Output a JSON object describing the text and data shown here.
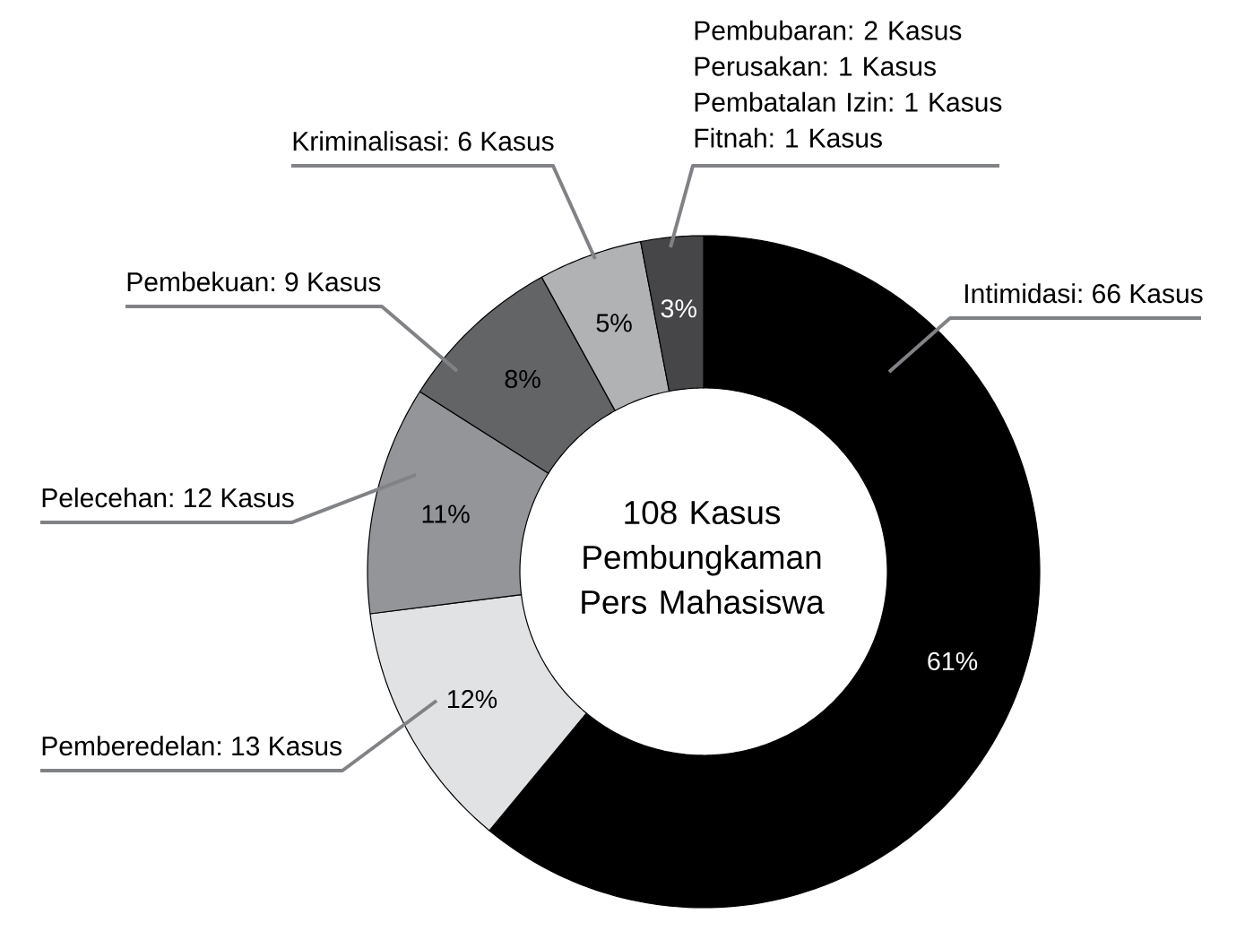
{
  "chart_data": {
    "type": "donut",
    "title": "108 Kasus Pembungkaman Pers Mahasiswa",
    "categories": [
      "Intimidasi: 66 Kasus",
      "Pemberedelan: 13 Kasus",
      "Pelecehan: 12 Kasus",
      "Pembekuan: 9 Kasus",
      "Kriminalisasi: 6 Kasus",
      "Pembubaran: 2 Kasus Perusakan: 1 Kasus Pembatalan Izin: 1 Kasus Fitnah: 1 Kasus"
    ],
    "values": [
      61,
      12,
      11,
      8,
      5,
      3
    ],
    "colors": [
      "#000000",
      "#e1e2e3",
      "#939598",
      "#636466",
      "#b1b2b4",
      "#464648"
    ],
    "value_labels": [
      "61%",
      "12%",
      "11%",
      "8%",
      "5%",
      "3%"
    ]
  }
}
